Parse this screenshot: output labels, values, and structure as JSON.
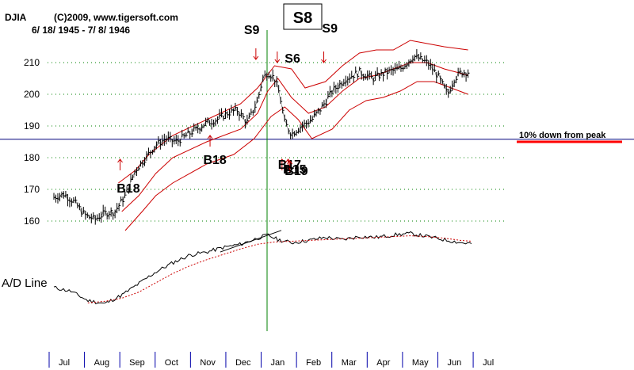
{
  "chart_data": {
    "type": "line",
    "title": "DJIA",
    "copyright": "(C)2009, www.tigersoft.com",
    "date_range": "6/ 18/ 1945 - 7/ 8/ 1946",
    "y_ticks": [
      160,
      170,
      180,
      190,
      200,
      210
    ],
    "ylim": [
      157,
      215
    ],
    "months": [
      "Jul",
      "Aug",
      "Sep",
      "Oct",
      "Nov",
      "Dec",
      "Jan",
      "Feb",
      "Mar",
      "Apr",
      "May",
      "Jun",
      "Jul"
    ],
    "x_range": [
      0,
      12.7
    ],
    "reference_line": {
      "value": 185.8,
      "label": "10% down from peak"
    },
    "vertical_marker": {
      "x": 6.28,
      "label": "S8"
    },
    "price_series": [
      [
        0.0,
        167.5
      ],
      [
        0.3,
        168.5
      ],
      [
        0.6,
        166.0
      ],
      [
        0.9,
        162.0
      ],
      [
        1.2,
        160.5
      ],
      [
        1.5,
        162.5
      ],
      [
        1.8,
        163.0
      ],
      [
        2.1,
        168.0
      ],
      [
        2.4,
        176.0
      ],
      [
        2.7,
        180.0
      ],
      [
        3.0,
        184.0
      ],
      [
        3.3,
        186.0
      ],
      [
        3.6,
        185.0
      ],
      [
        3.9,
        187.0
      ],
      [
        4.2,
        189.0
      ],
      [
        4.5,
        191.0
      ],
      [
        4.8,
        192.0
      ],
      [
        5.1,
        194.0
      ],
      [
        5.4,
        195.0
      ],
      [
        5.7,
        191.0
      ],
      [
        6.0,
        198.0
      ],
      [
        6.15,
        205.0
      ],
      [
        6.3,
        207.0
      ],
      [
        6.5,
        205.0
      ],
      [
        6.65,
        200.0
      ],
      [
        6.8,
        191.0
      ],
      [
        7.0,
        187.5
      ],
      [
        7.3,
        190.0
      ],
      [
        7.6,
        192.0
      ],
      [
        7.9,
        196.0
      ],
      [
        8.2,
        201.0
      ],
      [
        8.6,
        205.0
      ],
      [
        9.0,
        207.0
      ],
      [
        9.4,
        205.0
      ],
      [
        9.8,
        207.0
      ],
      [
        10.2,
        208.0
      ],
      [
        10.6,
        212.0
      ],
      [
        11.0,
        210.0
      ],
      [
        11.3,
        206.0
      ],
      [
        11.6,
        200.0
      ],
      [
        11.8,
        205.0
      ],
      [
        12.0,
        207.0
      ],
      [
        12.2,
        207.0
      ]
    ],
    "upper_band": [
      [
        1.9,
        172.0
      ],
      [
        2.4,
        176.0
      ],
      [
        2.8,
        181.0
      ],
      [
        3.5,
        187.0
      ],
      [
        4.5,
        192.0
      ],
      [
        5.5,
        197.0
      ],
      [
        6.0,
        202.0
      ],
      [
        6.5,
        209.0
      ],
      [
        7.0,
        208.0
      ],
      [
        7.4,
        202.0
      ],
      [
        8.0,
        204.0
      ],
      [
        8.5,
        209.0
      ],
      [
        9.0,
        213.0
      ],
      [
        9.5,
        214.0
      ],
      [
        10.0,
        214.0
      ],
      [
        10.5,
        217.0
      ],
      [
        11.0,
        216.0
      ],
      [
        11.5,
        215.0
      ],
      [
        12.2,
        214.0
      ]
    ],
    "middle_band": [
      [
        2.0,
        163.0
      ],
      [
        2.5,
        168.0
      ],
      [
        3.0,
        175.0
      ],
      [
        3.5,
        180.0
      ],
      [
        4.5,
        185.0
      ],
      [
        5.5,
        189.0
      ],
      [
        6.0,
        194.0
      ],
      [
        6.3,
        201.0
      ],
      [
        6.6,
        205.0
      ],
      [
        7.0,
        199.0
      ],
      [
        7.5,
        194.0
      ],
      [
        8.0,
        196.0
      ],
      [
        8.5,
        201.0
      ],
      [
        9.0,
        205.0
      ],
      [
        9.5,
        206.0
      ],
      [
        10.0,
        208.0
      ],
      [
        10.5,
        210.0
      ],
      [
        11.0,
        210.0
      ],
      [
        11.5,
        208.0
      ],
      [
        12.2,
        206.0
      ]
    ],
    "lower_band": [
      [
        2.1,
        157.0
      ],
      [
        2.6,
        163.0
      ],
      [
        3.0,
        168.0
      ],
      [
        3.5,
        172.0
      ],
      [
        4.5,
        178.0
      ],
      [
        5.3,
        181.0
      ],
      [
        5.9,
        186.0
      ],
      [
        6.4,
        193.0
      ],
      [
        6.8,
        196.0
      ],
      [
        7.2,
        192.0
      ],
      [
        7.6,
        186.0
      ],
      [
        8.2,
        189.0
      ],
      [
        8.7,
        195.0
      ],
      [
        9.2,
        198.0
      ],
      [
        9.7,
        199.0
      ],
      [
        10.2,
        201.0
      ],
      [
        10.7,
        204.0
      ],
      [
        11.2,
        204.0
      ],
      [
        11.7,
        202.0
      ],
      [
        12.2,
        200.0
      ]
    ],
    "ad_line": [
      [
        0.0,
        30
      ],
      [
        0.5,
        25
      ],
      [
        1.0,
        13
      ],
      [
        1.5,
        9
      ],
      [
        2.0,
        20
      ],
      [
        2.5,
        35
      ],
      [
        3.0,
        50
      ],
      [
        3.5,
        62
      ],
      [
        4.0,
        72
      ],
      [
        4.5,
        76
      ],
      [
        5.0,
        82
      ],
      [
        5.5,
        86
      ],
      [
        6.0,
        94
      ],
      [
        6.3,
        98
      ],
      [
        6.6,
        92
      ],
      [
        7.0,
        88
      ],
      [
        7.5,
        91
      ],
      [
        8.0,
        95
      ],
      [
        8.5,
        92
      ],
      [
        9.0,
        96
      ],
      [
        9.5,
        95
      ],
      [
        10.0,
        98
      ],
      [
        10.5,
        100
      ],
      [
        11.0,
        96
      ],
      [
        11.5,
        92
      ],
      [
        12.0,
        88
      ],
      [
        12.3,
        87
      ]
    ],
    "ad_ma": [
      [
        1.0,
        10
      ],
      [
        1.5,
        12
      ],
      [
        2.0,
        16
      ],
      [
        2.5,
        24
      ],
      [
        3.0,
        36
      ],
      [
        3.5,
        48
      ],
      [
        4.0,
        58
      ],
      [
        4.5,
        66
      ],
      [
        5.0,
        73
      ],
      [
        5.5,
        80
      ],
      [
        6.0,
        86
      ],
      [
        6.5,
        89
      ],
      [
        7.0,
        90
      ],
      [
        7.5,
        91
      ],
      [
        8.0,
        92
      ],
      [
        8.5,
        93
      ],
      [
        9.0,
        94
      ],
      [
        9.5,
        95
      ],
      [
        10.0,
        96
      ],
      [
        10.5,
        97
      ],
      [
        11.0,
        96
      ],
      [
        11.5,
        94
      ],
      [
        12.0,
        91
      ],
      [
        12.3,
        90
      ]
    ],
    "ad_label": "A/D Line",
    "signals": [
      {
        "label": "S9",
        "x": 5.95,
        "y": 211.0,
        "dir": "down",
        "label_x": 5.6,
        "label_y": 219.0
      },
      {
        "label": "S6",
        "x": 6.58,
        "y": 210.0,
        "dir": "down",
        "label_x": 6.8,
        "label_y": 210.0
      },
      {
        "label": "S9",
        "x": 7.95,
        "y": 210.0,
        "dir": "down",
        "label_x": 7.9,
        "label_y": 219.5
      },
      {
        "label": "B18",
        "x": 1.95,
        "y": 179.5,
        "dir": "up",
        "label_x": 1.85,
        "label_y": 169.0
      },
      {
        "label": "B18",
        "x": 4.6,
        "y": 187.0,
        "dir": "up",
        "label_x": 4.4,
        "label_y": 178.0
      },
      {
        "label": "B17",
        "x": 6.72,
        "y": 179.5,
        "dir": "up",
        "label_x": 6.6,
        "label_y": 176.5
      },
      {
        "label": "B15",
        "x": 6.9,
        "y": 179.5,
        "dir": "up",
        "label_x": 6.75,
        "label_y": 175.0
      },
      {
        "label": "B19",
        "x": 6.95,
        "y": 179.0,
        "dir": "up",
        "label_x": 6.8,
        "label_y": 174.5
      }
    ]
  },
  "colors": {
    "price": "#000000",
    "band": "#cc0000",
    "reference": "#00007a",
    "marker": "#008000",
    "ad_ma": "#cc0000",
    "annotation_underline": "#ff0000",
    "grid": "#008000"
  }
}
